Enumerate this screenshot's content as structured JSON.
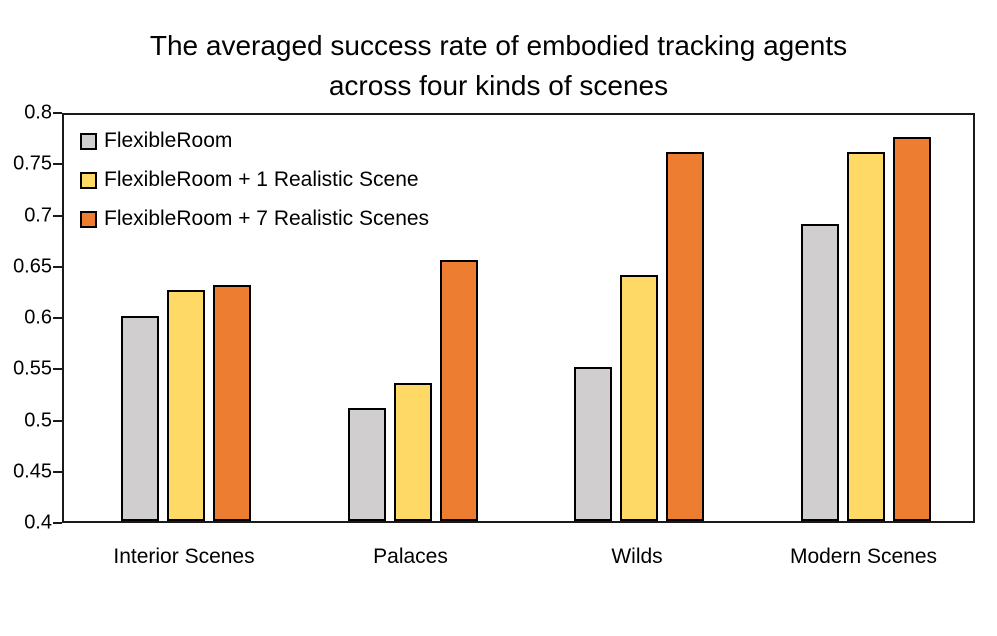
{
  "chart_data": {
    "type": "bar",
    "title": "The averaged success rate of embodied tracking agents across four kinds of scenes",
    "categories": [
      "Interior Scenes",
      "Palaces",
      "Wilds",
      "Modern Scenes"
    ],
    "series": [
      {
        "name": "FlexibleRoom",
        "color": "#D0CECE",
        "values": [
          0.6,
          0.51,
          0.55,
          0.69
        ]
      },
      {
        "name": "FlexibleRoom + 1 Realistic Scene",
        "color": "#FFD966",
        "values": [
          0.625,
          0.535,
          0.64,
          0.76
        ]
      },
      {
        "name": "FlexibleRoom + 7 Realistic Scenes",
        "color": "#ED7D31",
        "values": [
          0.63,
          0.655,
          0.76,
          0.775
        ]
      }
    ],
    "xlabel": "",
    "ylabel": "",
    "ylim": [
      0.4,
      0.8
    ],
    "ytick_labels": [
      "0.4",
      "0.45",
      "0.5",
      "0.55",
      "0.6",
      "0.65",
      "0.7",
      "0.75",
      "0.8"
    ],
    "ytick_values": [
      0.4,
      0.45,
      0.5,
      0.55,
      0.6,
      0.65,
      0.7,
      0.75,
      0.8
    ],
    "grid": false,
    "legend_position": "top-left-inside",
    "bar_border_color": "#000000",
    "axis_color": "#1a1a1a",
    "background_color": "#ffffff"
  }
}
